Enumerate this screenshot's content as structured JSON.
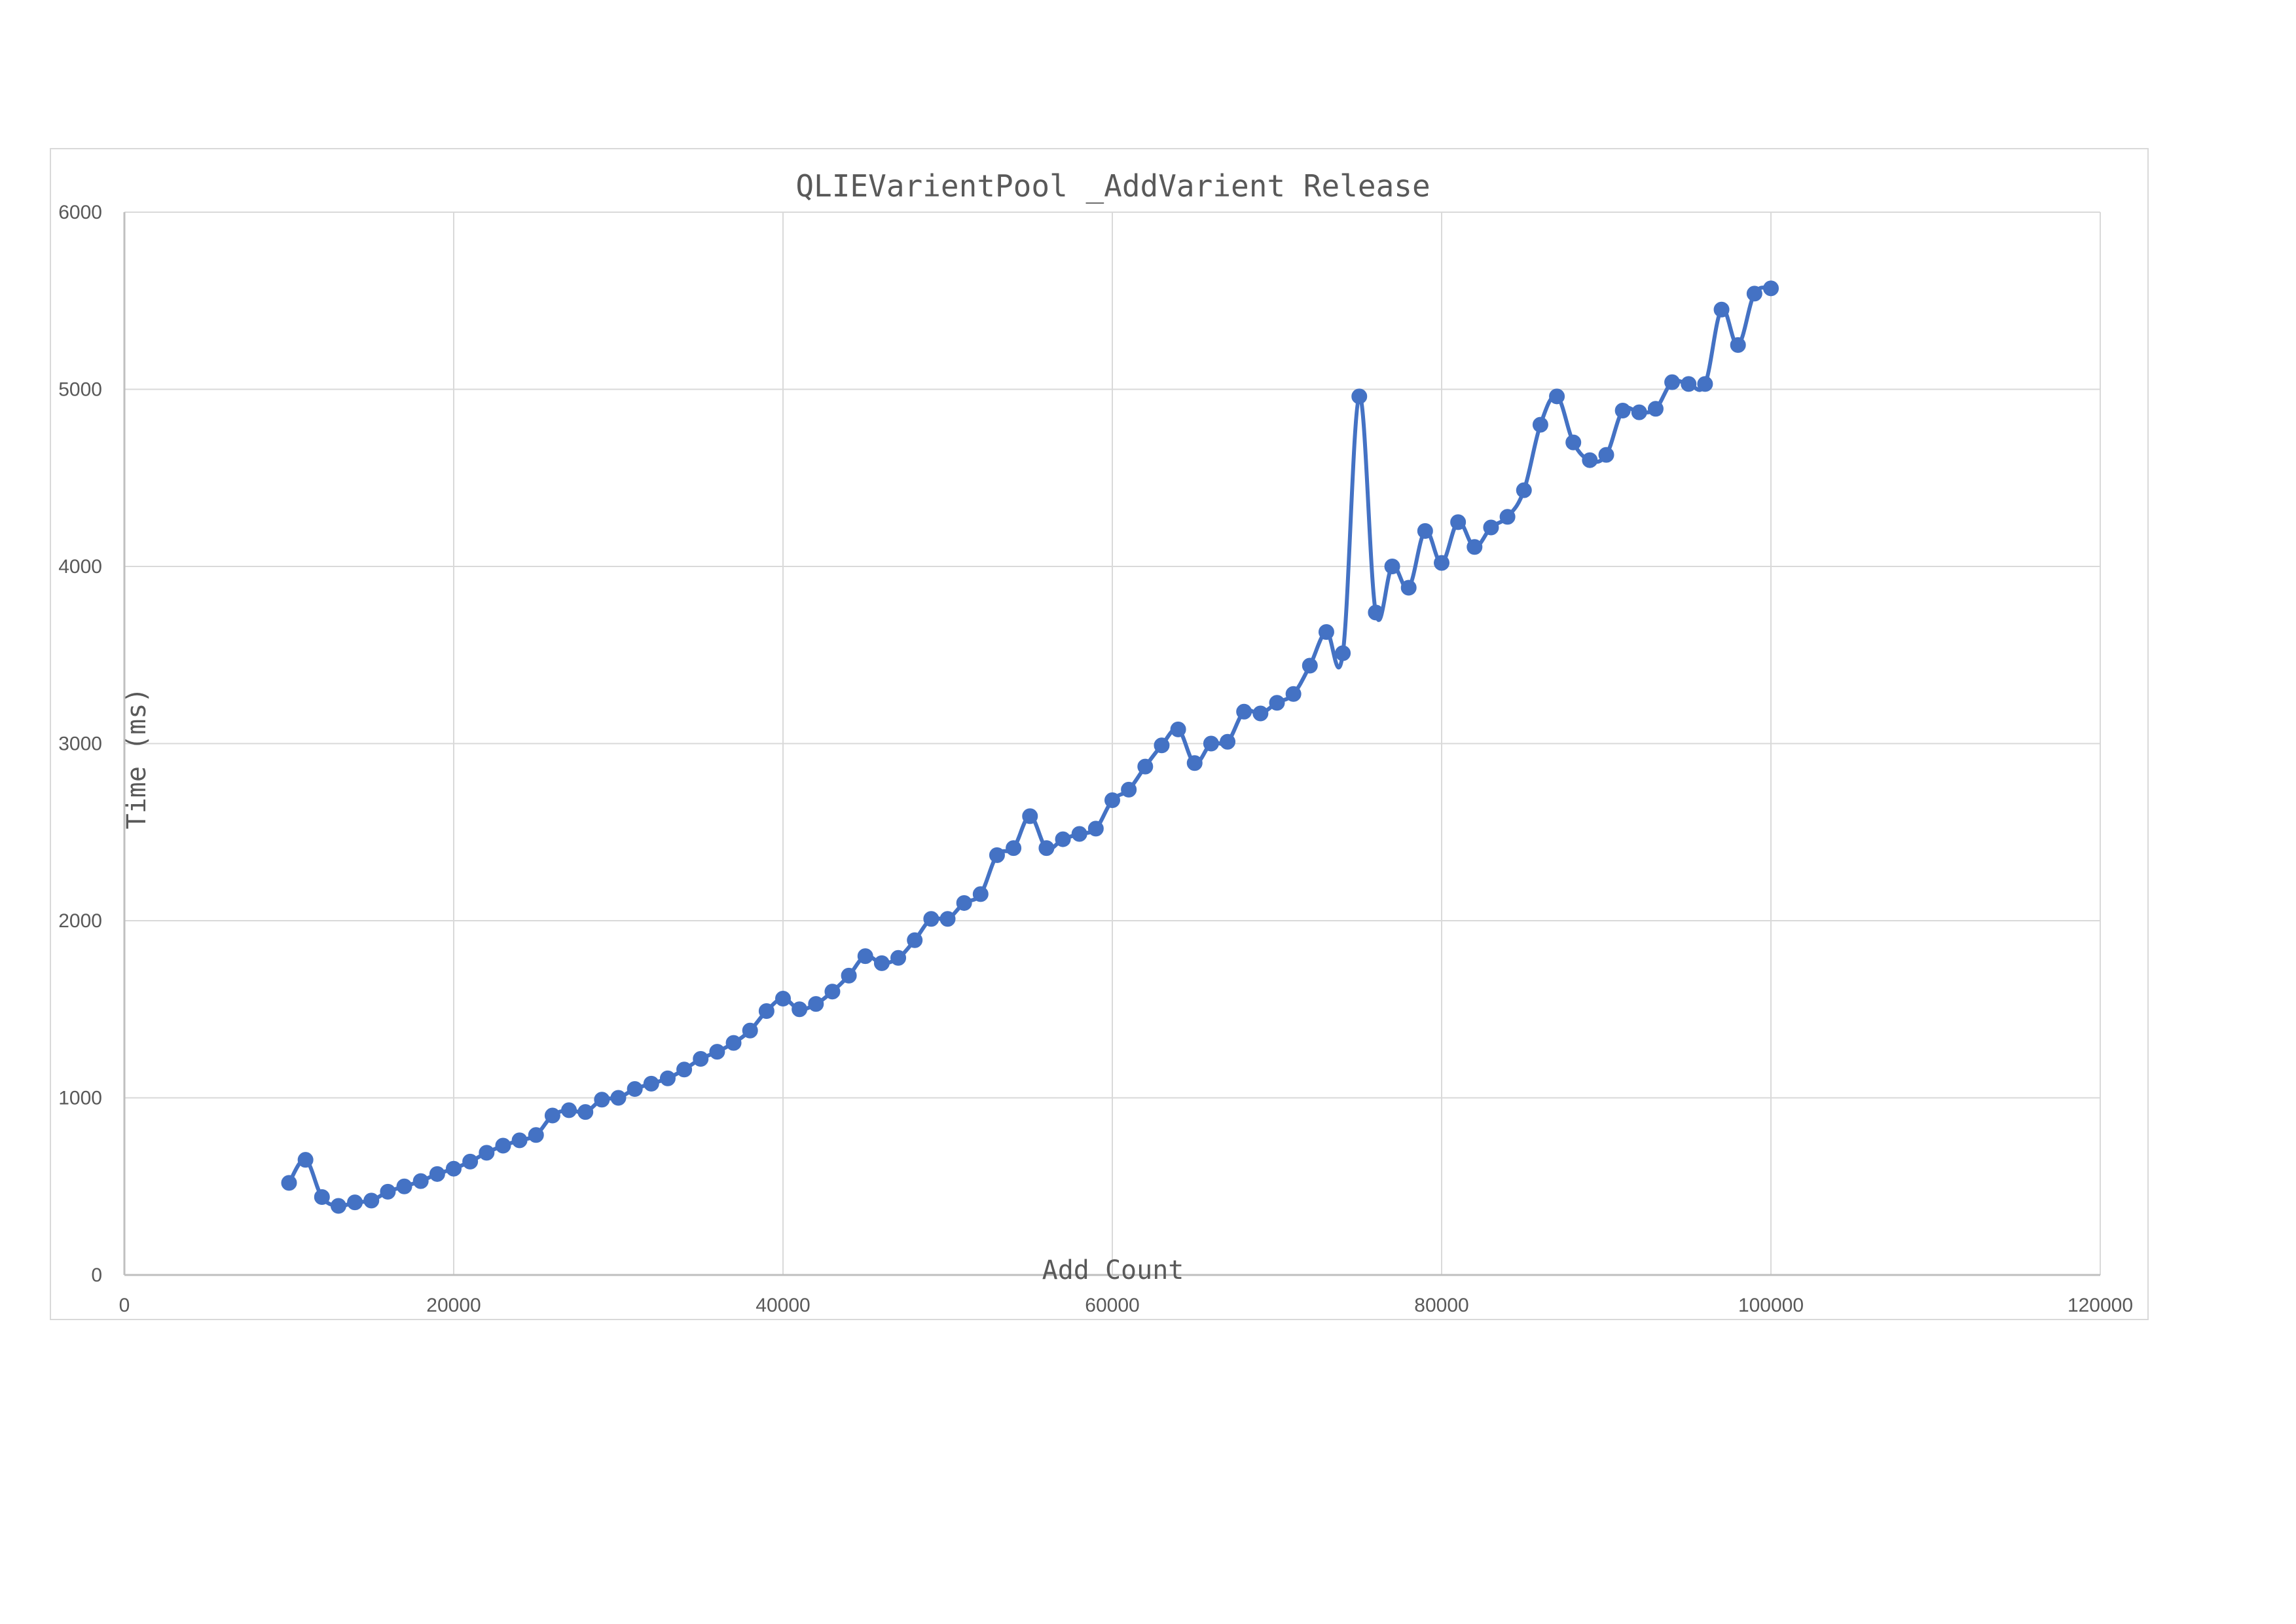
{
  "chart_data": {
    "type": "scatter",
    "title": "QLIEVarientPool _AddVarient Release",
    "xlabel": "Add Count",
    "ylabel": "Time (ms)",
    "xlim": [
      0,
      120000
    ],
    "ylim": [
      0,
      6000
    ],
    "x_ticks": [
      "0",
      "20000",
      "40000",
      "60000",
      "80000",
      "100000",
      "120000"
    ],
    "y_ticks": [
      "0",
      "1000",
      "2000",
      "3000",
      "4000",
      "5000",
      "6000"
    ],
    "grid": true,
    "legend": "none",
    "series_color": "#4472C4",
    "series": [
      {
        "x": [
          10000,
          11000,
          12000,
          13000,
          14000,
          15000,
          16000,
          17000,
          18000,
          19000,
          20000,
          21000,
          22000,
          23000,
          24000,
          25000,
          26000,
          27000,
          28000,
          29000,
          30000,
          31000,
          32000,
          33000,
          34000,
          35000,
          36000,
          37000,
          38000,
          39000,
          40000,
          41000,
          42000,
          43000,
          44000,
          45000,
          46000,
          47000,
          48000,
          49000,
          50000,
          51000,
          52000,
          53000,
          54000,
          55000,
          56000,
          57000,
          58000,
          59000,
          60000,
          61000,
          62000,
          63000,
          64000,
          65000,
          66000,
          67000,
          68000,
          69000,
          70000,
          71000,
          72000,
          73000,
          74000,
          75000,
          76000,
          77000,
          78000,
          79000,
          80000,
          81000,
          82000,
          83000,
          84000,
          85000,
          86000,
          87000,
          88000,
          89000,
          90000,
          91000,
          92000,
          93000,
          94000,
          95000,
          96000,
          97000,
          98000,
          99000,
          100000
        ],
        "values": [
          520,
          650,
          440,
          390,
          410,
          420,
          470,
          500,
          530,
          570,
          600,
          640,
          690,
          730,
          760,
          790,
          900,
          930,
          920,
          990,
          1000,
          1050,
          1080,
          1110,
          1160,
          1220,
          1260,
          1310,
          1380,
          1490,
          1560,
          1500,
          1530,
          1600,
          1690,
          1800,
          1760,
          1790,
          1890,
          2010,
          2010,
          2100,
          2150,
          2370,
          2410,
          2590,
          2410,
          2460,
          2490,
          2520,
          2680,
          2740,
          2870,
          2990,
          3080,
          2890,
          3000,
          3010,
          3180,
          3170,
          3230,
          3280,
          3440,
          3630,
          3510,
          4960,
          3740,
          4000,
          3880,
          4200,
          4020,
          4250,
          4110,
          4220,
          4280,
          4430,
          4800,
          4960,
          4700,
          4600,
          4630,
          4880,
          4870,
          4890,
          5040,
          5030,
          5030,
          5450,
          5250,
          5540,
          5570
        ]
      }
    ]
  }
}
